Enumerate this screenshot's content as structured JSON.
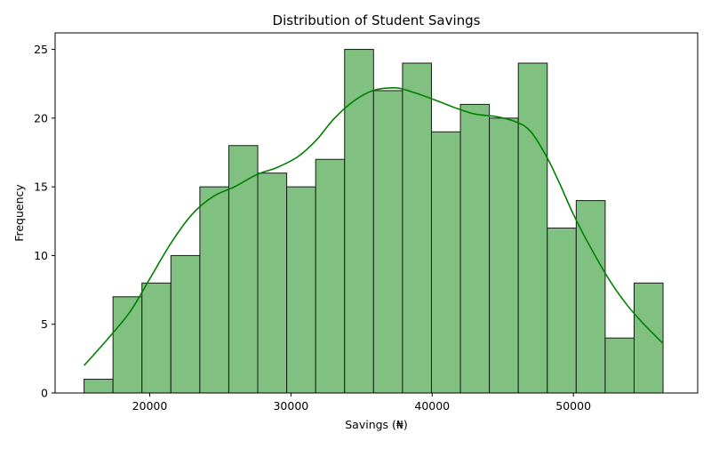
{
  "chart_data": {
    "type": "bar",
    "title": "Distribution of Student Savings",
    "xlabel": "Savings (₦)",
    "ylabel": "Frequency",
    "xlim": [
      13300,
      58800
    ],
    "ylim": [
      0,
      26.2
    ],
    "x_ticks": [
      20000,
      30000,
      40000,
      50000
    ],
    "y_ticks": [
      0,
      5,
      10,
      15,
      20,
      25
    ],
    "grid": false,
    "bins": [
      {
        "start": 15350,
        "end": 17400,
        "count": 1
      },
      {
        "start": 17400,
        "end": 19450,
        "count": 7
      },
      {
        "start": 19450,
        "end": 21500,
        "count": 8
      },
      {
        "start": 21500,
        "end": 23550,
        "count": 10
      },
      {
        "start": 23550,
        "end": 25600,
        "count": 15
      },
      {
        "start": 25600,
        "end": 27650,
        "count": 18
      },
      {
        "start": 27650,
        "end": 29700,
        "count": 16
      },
      {
        "start": 29700,
        "end": 31750,
        "count": 15
      },
      {
        "start": 31750,
        "end": 33800,
        "count": 17
      },
      {
        "start": 33800,
        "end": 35850,
        "count": 25
      },
      {
        "start": 35850,
        "end": 37900,
        "count": 22
      },
      {
        "start": 37900,
        "end": 39950,
        "count": 24
      },
      {
        "start": 39950,
        "end": 42000,
        "count": 19
      },
      {
        "start": 42000,
        "end": 44050,
        "count": 21
      },
      {
        "start": 44050,
        "end": 46100,
        "count": 20
      },
      {
        "start": 46100,
        "end": 48150,
        "count": 24
      },
      {
        "start": 48150,
        "end": 50200,
        "count": 12
      },
      {
        "start": 50200,
        "end": 52250,
        "count": 14
      },
      {
        "start": 52250,
        "end": 54300,
        "count": 4
      },
      {
        "start": 54300,
        "end": 56350,
        "count": 8
      }
    ],
    "kde": {
      "x": [
        15350,
        17000,
        18600,
        20000,
        21500,
        23000,
        24500,
        26000,
        27600,
        29000,
        30500,
        31800,
        33000,
        34400,
        35800,
        37400,
        38600,
        40000,
        41500,
        43000,
        44600,
        46000,
        47000,
        48100,
        49000,
        50000,
        51000,
        52500,
        53800,
        55000,
        56350
      ],
      "y": [
        2.0,
        3.9,
        5.9,
        8.3,
        10.9,
        13.0,
        14.3,
        15.0,
        15.9,
        16.4,
        17.2,
        18.4,
        19.9,
        21.2,
        22.0,
        22.2,
        21.9,
        21.4,
        20.8,
        20.3,
        20.1,
        19.7,
        19.0,
        17.2,
        15.3,
        13.0,
        11.0,
        8.3,
        6.4,
        5.0,
        3.6
      ]
    },
    "colors": {
      "bar_fill": "#80c080",
      "bar_edge": "#1a1a1a",
      "kde_line": "#008000",
      "axis": "#000000"
    }
  }
}
